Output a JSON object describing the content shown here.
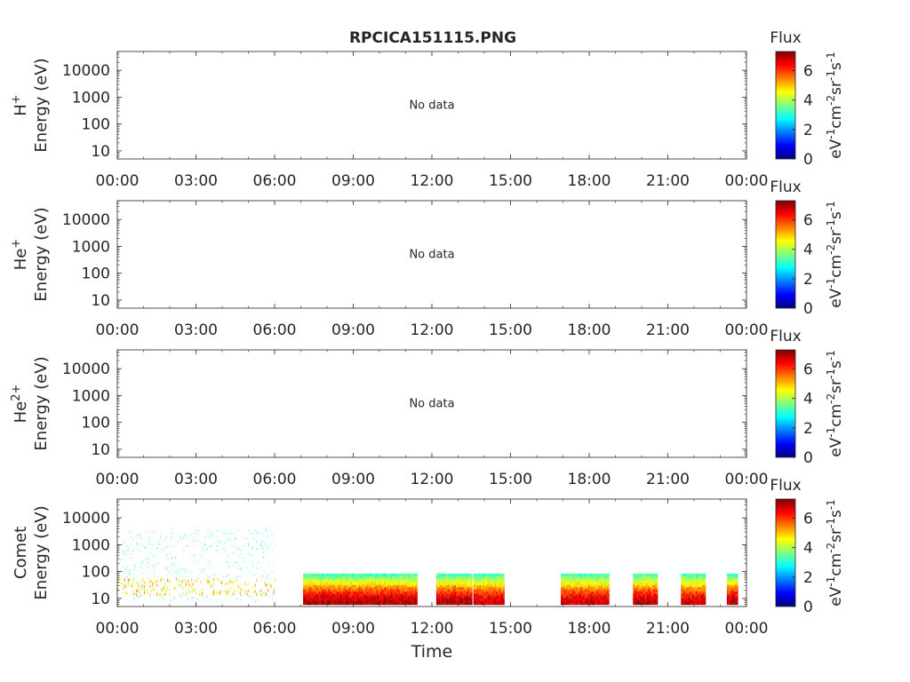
{
  "title": "RPCICA151115.PNG",
  "xlabel": "Time",
  "x_ticks": [
    "00:00",
    "03:00",
    "06:00",
    "09:00",
    "12:00",
    "15:00",
    "18:00",
    "21:00",
    "00:00"
  ],
  "y_ticks": [
    "10",
    "100",
    "1000",
    "10000"
  ],
  "y_scale": "log",
  "ylim": [
    5,
    50000
  ],
  "xlim": [
    "00:00",
    "24:00"
  ],
  "colorbar": {
    "title": "Flux",
    "label": "eV-1cm-2sr-1s-1",
    "ticks": [
      "0",
      "2",
      "4",
      "6"
    ],
    "range": [
      0,
      7.3
    ],
    "colormap": [
      "#00007f",
      "#0000ff",
      "#007fff",
      "#00ffff",
      "#7fff7f",
      "#ffff00",
      "#ff7f00",
      "#ff0000",
      "#7f0000"
    ]
  },
  "no_data_text": "No data",
  "chart_data": [
    {
      "type": "heatmap",
      "species": "H+",
      "ylabel": "Energy (eV)",
      "has_data": false,
      "ylim": [
        5,
        50000
      ]
    },
    {
      "type": "heatmap",
      "species": "He+",
      "ylabel": "Energy (eV)",
      "has_data": false,
      "ylim": [
        5,
        50000
      ]
    },
    {
      "type": "heatmap",
      "species": "He2+",
      "ylabel": "Energy (eV)",
      "has_data": false,
      "ylim": [
        5,
        50000
      ]
    },
    {
      "type": "heatmap",
      "species": "Comet",
      "ylabel": "Energy (eV)",
      "xlabel": "Time",
      "has_data": true,
      "ylim": [
        5,
        50000
      ],
      "segments": [
        {
          "start": "00:00",
          "end": "06:00",
          "emin": 8,
          "emax": 4000,
          "peak_flux": 5.5,
          "band_low": 15,
          "band_high": 60
        },
        {
          "start": "07:05",
          "end": "11:25",
          "emin": 6,
          "emax": 85,
          "peak_flux": 7.0
        },
        {
          "start": "12:10",
          "end": "13:30",
          "emin": 6,
          "emax": 85,
          "peak_flux": 7.0
        },
        {
          "start": "13:35",
          "end": "14:45",
          "emin": 6,
          "emax": 85,
          "peak_flux": 6.8
        },
        {
          "start": "16:55",
          "end": "18:45",
          "emin": 6,
          "emax": 85,
          "peak_flux": 6.8
        },
        {
          "start": "19:40",
          "end": "20:35",
          "emin": 6,
          "emax": 85,
          "peak_flux": 7.0
        },
        {
          "start": "21:30",
          "end": "22:25",
          "emin": 6,
          "emax": 85,
          "peak_flux": 6.8
        },
        {
          "start": "23:15",
          "end": "23:40",
          "emin": 6,
          "emax": 85,
          "peak_flux": 7.0
        }
      ]
    }
  ]
}
